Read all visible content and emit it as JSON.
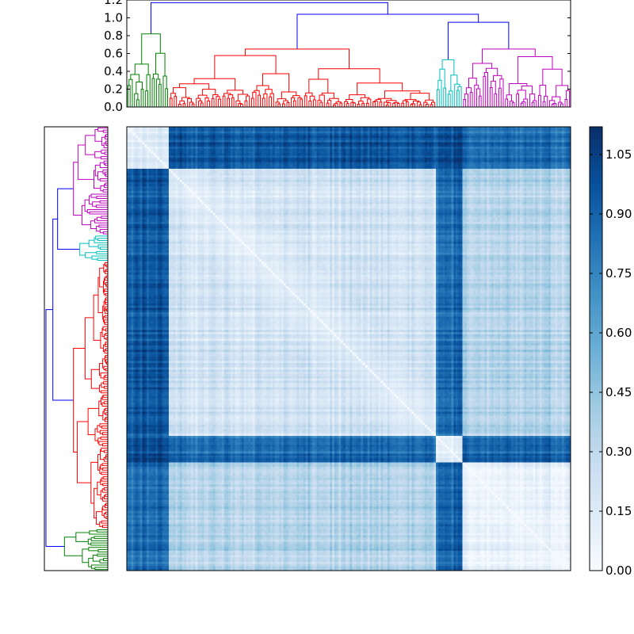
{
  "chart_data": [
    {
      "type": "dendrogram",
      "role": "top-dendrogram",
      "title": "",
      "xlabel": "",
      "ylabel": "",
      "ylim": [
        0,
        1.2
      ],
      "y_ticks": [
        "0.0",
        "0.2",
        "0.4",
        "0.6",
        "0.8",
        "1.0",
        "1.2"
      ],
      "leaves": 201,
      "root_height": 1.17,
      "clusters": [
        {
          "color": "#008000",
          "leaf_range": [
            0,
            19
          ],
          "height": 0.82
        },
        {
          "color": "#ff0000",
          "leaf_range": [
            19,
            140
          ],
          "height": 0.65
        },
        {
          "color": "#00bfbf",
          "leaf_range": [
            140,
            152
          ],
          "height": 0.53
        },
        {
          "color": "#bf00bf",
          "leaf_range": [
            152,
            201
          ],
          "height": 0.65
        }
      ],
      "upper_links_color": "#0000ff",
      "upper_links": [
        {
          "between": [
            "green",
            "rest"
          ],
          "height": 1.17
        },
        {
          "between": [
            "red",
            "cyan+magenta"
          ],
          "height": 1.04
        },
        {
          "between": [
            "cyan",
            "magenta"
          ],
          "height": 0.95
        }
      ]
    },
    {
      "type": "dendrogram",
      "role": "left-dendrogram",
      "orientation": "left",
      "leaves": 201,
      "clusters_top_to_bottom": [
        "#bf00bf",
        "#00bfbf",
        "#ff0000",
        "#008000"
      ]
    },
    {
      "type": "heatmap",
      "role": "distance-matrix",
      "rows": 201,
      "cols": 201,
      "colormap": "Blues",
      "vmin": 0.0,
      "vmax": 1.12,
      "diagonal_value": 0.0,
      "cluster_boundaries": [
        19,
        140,
        152
      ],
      "within_cluster_level": {
        "green": 0.22,
        "red": 0.2,
        "cyan": 0.15,
        "magenta": 0.12
      },
      "between_cluster_level": {
        "green-red": 0.95,
        "green-cyan": 1.0,
        "green-magenta": 0.88,
        "red-cyan": 0.85,
        "red-magenta": 0.35,
        "cyan-magenta": 0.9
      }
    },
    {
      "type": "colorbar",
      "role": "colorbar",
      "colormap": "Blues",
      "range": [
        0.0,
        1.12
      ],
      "tick_values": [
        0.0,
        0.15,
        0.3,
        0.45,
        0.6,
        0.75,
        0.9,
        1.05
      ],
      "tick_labels": [
        "0.00",
        "0.15",
        "0.30",
        "0.45",
        "0.60",
        "0.75",
        "0.90",
        "1.05"
      ]
    }
  ]
}
